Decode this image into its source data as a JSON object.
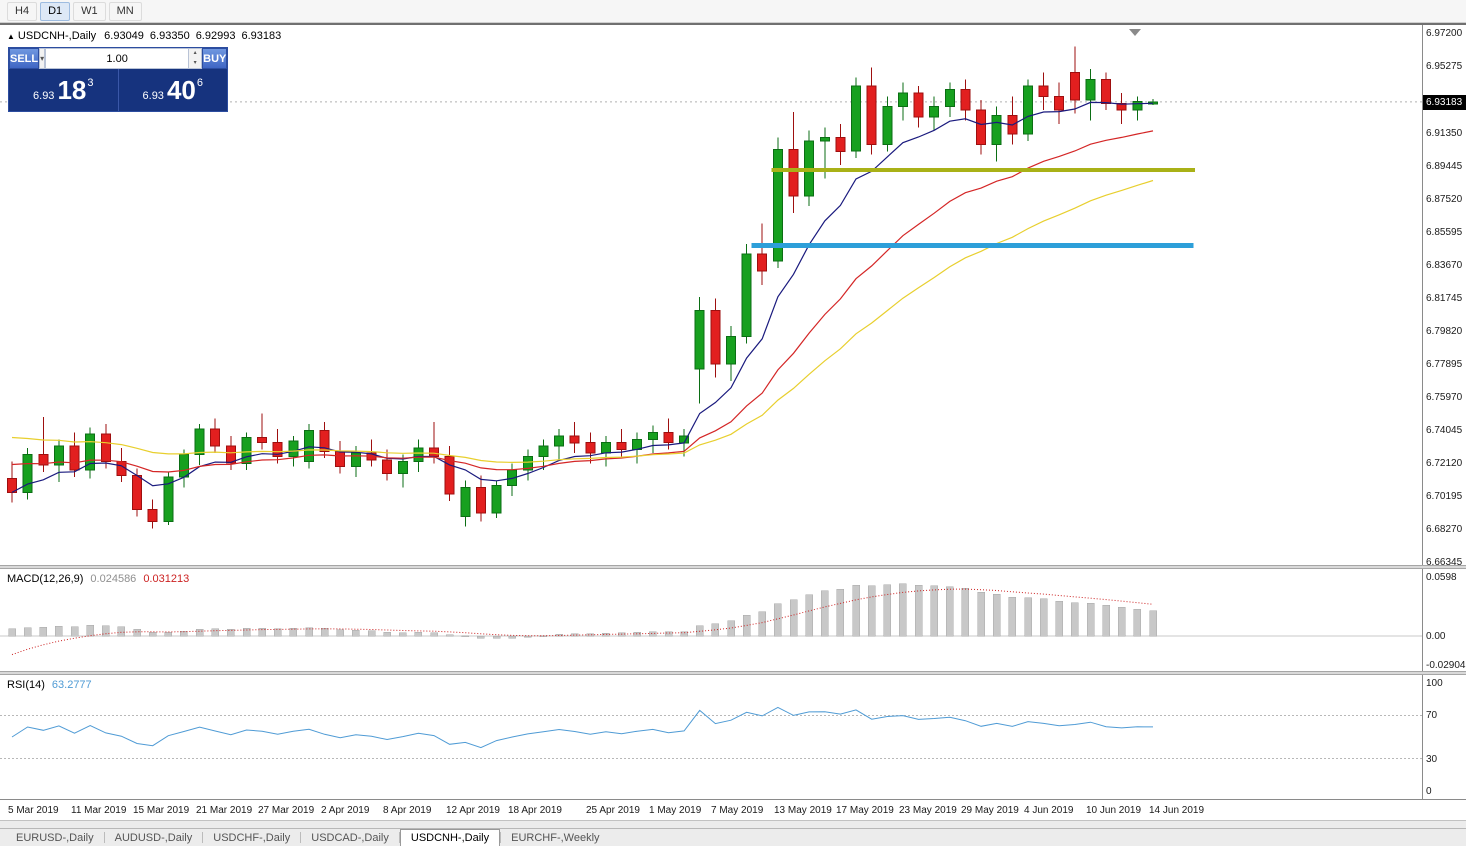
{
  "toolbar": {
    "timeframes": [
      "H4",
      "D1",
      "W1",
      "MN"
    ],
    "active": "D1"
  },
  "chart_header": {
    "marker": "▲",
    "title": "USDCNH-,Daily",
    "open": "6.93049",
    "high": "6.93350",
    "low": "6.92993",
    "close": "6.93183"
  },
  "trade_panel": {
    "sell_label": "SELL",
    "buy_label": "BUY",
    "volume": "1.00",
    "dropdown_icon": "▾",
    "spin_up_icon": "▴",
    "spin_down_icon": "▾",
    "sell_price_small": "6.93",
    "sell_price_big": "18",
    "sell_price_sup": "3",
    "buy_price_small": "6.93",
    "buy_price_big": "40",
    "buy_price_sup": "6"
  },
  "tabs": [
    {
      "label": "EURUSD-,Daily",
      "active": false
    },
    {
      "label": "AUDUSD-,Daily",
      "active": false
    },
    {
      "label": "USDCHF-,Daily",
      "active": false
    },
    {
      "label": "USDCAD-,Daily",
      "active": false
    },
    {
      "label": "USDCNH-,Daily",
      "active": true
    },
    {
      "label": "EURCHF-,Weekly",
      "active": false
    }
  ],
  "chart_data": {
    "type": "candlestick",
    "symbol": "USDCNH",
    "timeframe": "Daily",
    "bid": 6.93183,
    "current_price_label": "6.93183",
    "ylim": [
      6.66345,
      6.972
    ],
    "y_ticks": [
      "6.97200",
      "6.95275",
      "6.93350",
      "6.91350",
      "6.89445",
      "6.87520",
      "6.85595",
      "6.83670",
      "6.81745",
      "6.79820",
      "6.77895",
      "6.75970",
      "6.74045",
      "6.72120",
      "6.70195",
      "6.68270",
      "6.66345"
    ],
    "x_labels": [
      {
        "label": "5 Mar 2019",
        "bar": 0
      },
      {
        "label": "11 Mar 2019",
        "bar": 4
      },
      {
        "label": "15 Mar 2019",
        "bar": 8
      },
      {
        "label": "21 Mar 2019",
        "bar": 12
      },
      {
        "label": "27 Mar 2019",
        "bar": 16
      },
      {
        "label": "2 Apr 2019",
        "bar": 20
      },
      {
        "label": "8 Apr 2019",
        "bar": 24
      },
      {
        "label": "12 Apr 2019",
        "bar": 28
      },
      {
        "label": "18 Apr 2019",
        "bar": 32
      },
      {
        "label": "25 Apr 2019",
        "bar": 37
      },
      {
        "label": "1 May 2019",
        "bar": 41
      },
      {
        "label": "7 May 2019",
        "bar": 45
      },
      {
        "label": "13 May 2019",
        "bar": 49
      },
      {
        "label": "17 May 2019",
        "bar": 53
      },
      {
        "label": "23 May 2019",
        "bar": 57
      },
      {
        "label": "29 May 2019",
        "bar": 61
      },
      {
        "label": "4 Jun 2019",
        "bar": 65
      },
      {
        "label": "10 Jun 2019",
        "bar": 69
      },
      {
        "label": "14 Jun 2019",
        "bar": 73
      }
    ],
    "candles": [
      [
        6.712,
        6.722,
        6.698,
        6.704
      ],
      [
        6.704,
        6.73,
        6.7,
        6.726
      ],
      [
        6.726,
        6.748,
        6.716,
        6.72
      ],
      [
        6.72,
        6.735,
        6.71,
        6.731
      ],
      [
        6.731,
        6.739,
        6.713,
        6.717
      ],
      [
        6.717,
        6.742,
        6.712,
        6.738
      ],
      [
        6.738,
        6.744,
        6.718,
        6.722
      ],
      [
        6.722,
        6.73,
        6.71,
        6.714
      ],
      [
        6.714,
        6.718,
        6.69,
        6.694
      ],
      [
        6.694,
        6.7,
        6.683,
        6.687
      ],
      [
        6.687,
        6.716,
        6.685,
        6.713
      ],
      [
        6.713,
        6.729,
        6.707,
        6.726
      ],
      [
        6.726,
        6.744,
        6.72,
        6.741
      ],
      [
        6.741,
        6.747,
        6.727,
        6.731
      ],
      [
        6.731,
        6.737,
        6.717,
        6.721
      ],
      [
        6.721,
        6.739,
        6.717,
        6.736
      ],
      [
        6.736,
        6.75,
        6.729,
        6.733
      ],
      [
        6.733,
        6.741,
        6.721,
        6.725
      ],
      [
        6.725,
        6.737,
        6.719,
        6.734
      ],
      [
        6.722,
        6.744,
        6.718,
        6.74
      ],
      [
        6.74,
        6.745,
        6.724,
        6.728
      ],
      [
        6.728,
        6.734,
        6.715,
        6.719
      ],
      [
        6.719,
        6.731,
        6.713,
        6.727
      ],
      [
        6.727,
        6.735,
        6.719,
        6.723
      ],
      [
        6.723,
        6.729,
        6.711,
        6.715
      ],
      [
        6.715,
        6.726,
        6.707,
        6.722
      ],
      [
        6.722,
        6.735,
        6.716,
        6.73
      ],
      [
        6.73,
        6.745,
        6.721,
        6.725
      ],
      [
        6.725,
        6.731,
        6.699,
        6.703
      ],
      [
        6.69,
        6.711,
        6.684,
        6.707
      ],
      [
        6.707,
        6.714,
        6.687,
        6.692
      ],
      [
        6.692,
        6.711,
        6.689,
        6.708
      ],
      [
        6.708,
        6.721,
        6.702,
        6.717
      ],
      [
        6.717,
        6.729,
        6.711,
        6.725
      ],
      [
        6.725,
        6.735,
        6.717,
        6.731
      ],
      [
        6.731,
        6.741,
        6.723,
        6.737
      ],
      [
        6.737,
        6.745,
        6.727,
        6.733
      ],
      [
        6.733,
        6.739,
        6.721,
        6.727
      ],
      [
        6.727,
        6.737,
        6.719,
        6.733
      ],
      [
        6.733,
        6.741,
        6.725,
        6.729
      ],
      [
        6.729,
        6.739,
        6.721,
        6.735
      ],
      [
        6.735,
        6.743,
        6.727,
        6.739
      ],
      [
        6.739,
        6.747,
        6.729,
        6.733
      ],
      [
        6.733,
        6.741,
        6.725,
        6.737
      ],
      [
        6.776,
        6.818,
        6.756,
        6.81
      ],
      [
        6.81,
        6.817,
        6.771,
        6.779
      ],
      [
        6.779,
        6.801,
        6.769,
        6.795
      ],
      [
        6.795,
        6.849,
        6.791,
        6.843
      ],
      [
        6.843,
        6.861,
        6.825,
        6.833
      ],
      [
        6.839,
        6.911,
        6.835,
        6.904
      ],
      [
        6.904,
        6.926,
        6.867,
        6.877
      ],
      [
        6.877,
        6.915,
        6.871,
        6.909
      ],
      [
        6.909,
        6.917,
        6.887,
        6.911
      ],
      [
        6.911,
        6.919,
        6.895,
        6.903
      ],
      [
        6.903,
        6.946,
        6.899,
        6.941
      ],
      [
        6.941,
        6.952,
        6.901,
        6.907
      ],
      [
        6.907,
        6.935,
        6.903,
        6.929
      ],
      [
        6.929,
        6.943,
        6.921,
        6.937
      ],
      [
        6.937,
        6.941,
        6.917,
        6.923
      ],
      [
        6.923,
        6.935,
        6.915,
        6.929
      ],
      [
        6.929,
        6.943,
        6.923,
        6.939
      ],
      [
        6.939,
        6.945,
        6.921,
        6.927
      ],
      [
        6.927,
        6.933,
        6.901,
        6.907
      ],
      [
        6.907,
        6.929,
        6.897,
        6.924
      ],
      [
        6.924,
        6.935,
        6.907,
        6.913
      ],
      [
        6.913,
        6.945,
        6.909,
        6.941
      ],
      [
        6.941,
        6.949,
        6.927,
        6.935
      ],
      [
        6.935,
        6.943,
        6.919,
        6.927
      ],
      [
        6.949,
        6.964,
        6.925,
        6.933
      ],
      [
        6.933,
        6.951,
        6.921,
        6.945
      ],
      [
        6.945,
        6.949,
        6.927,
        6.931
      ],
      [
        6.931,
        6.937,
        6.919,
        6.927
      ],
      [
        6.927,
        6.935,
        6.921,
        6.932
      ],
      [
        6.93049,
        6.9335,
        6.92993,
        6.93183
      ]
    ],
    "moving_averages": [
      {
        "name": "fast-ma",
        "period": 8,
        "color": "#1a1a7e",
        "seed": null
      },
      {
        "name": "mid-ma",
        "period": 20,
        "color": "#d42626",
        "seed": 6.722
      },
      {
        "name": "slow-ma",
        "period": 34,
        "color": "#e8cf2e",
        "seed": 6.738
      }
    ],
    "levels": [
      {
        "name": "resistance-line",
        "price": 6.892,
        "color": "#a9b117",
        "width": 4,
        "from_bar": 48.6,
        "to_bar": 75.7
      },
      {
        "name": "support-line",
        "price": 6.848,
        "color": "#2d9fd9",
        "width": 5,
        "from_bar": 47.3,
        "to_bar": 75.6
      }
    ],
    "colors": {
      "bull": "#17a01f",
      "bull_edge": "#0b6e14",
      "bear": "#e21f1f",
      "bear_edge": "#9e0f0f",
      "background": "#ffffff",
      "bid_line": "#b0b0b0"
    },
    "indicators": {
      "macd": {
        "label": "MACD(12,26,9)",
        "value_main": "0.024586",
        "value_signal": "0.031213",
        "axis_ticks": [
          "0.0598",
          "0.00",
          "-0.029049"
        ],
        "range": [
          -0.029049,
          0.0598
        ],
        "histogram_color": "#c8c8c8",
        "histogram_edge": "#a8a8a8",
        "signal_color": "#cc2222"
      },
      "rsi": {
        "label": "RSI(14)",
        "value": "63.2777",
        "axis_ticks": [
          "100",
          "70",
          "30",
          "0"
        ],
        "levels": [
          70,
          30
        ],
        "line_color": "#4f9bd5"
      }
    }
  }
}
